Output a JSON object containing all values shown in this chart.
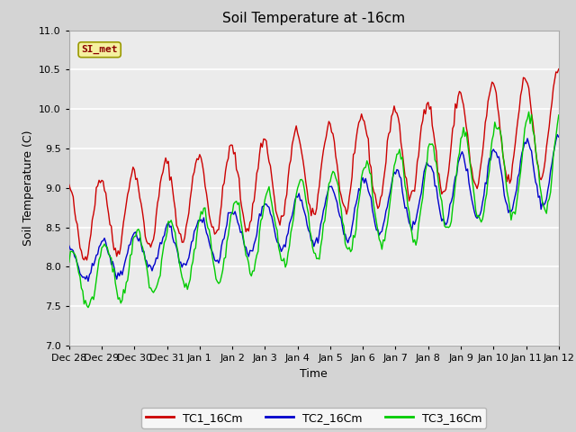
{
  "title": "Soil Temperature at -16cm",
  "xlabel": "Time",
  "ylabel": "Soil Temperature (C)",
  "ylim": [
    7.0,
    11.0
  ],
  "yticks": [
    7.0,
    7.5,
    8.0,
    8.5,
    9.0,
    9.5,
    10.0,
    10.5,
    11.0
  ],
  "xtick_labels": [
    "Dec 28",
    "Dec 29",
    "Dec 30",
    "Dec 31",
    "Jan 1",
    "Jan 2",
    "Jan 3",
    "Jan 4",
    "Jan 5",
    "Jan 6",
    "Jan 7",
    "Jan 8",
    "Jan 9",
    "Jan 10",
    "Jan 11",
    "Jan 12"
  ],
  "legend_labels": [
    "TC1_16Cm",
    "TC2_16Cm",
    "TC3_16Cm"
  ],
  "legend_colors": [
    "#cc0000",
    "#0000cc",
    "#00cc00"
  ],
  "line_colors": [
    "#cc0000",
    "#0000cc",
    "#00cc00"
  ],
  "annotation_text": "SI_met",
  "annotation_color": "#8B0000",
  "annotation_bg": "#f5f0a0",
  "fig_bg": "#d4d4d4",
  "axes_bg": "#ebebeb",
  "grid_color": "#ffffff",
  "title_fontsize": 11,
  "axis_label_fontsize": 9,
  "tick_fontsize": 8,
  "n_days": 15
}
